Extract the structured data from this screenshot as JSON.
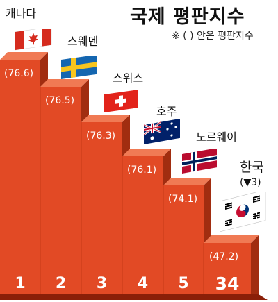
{
  "title": "국제 평판지수",
  "subtitle": "※ ( ) 안은 평판지수",
  "colors": {
    "bar_front": "#e24a25",
    "bar_side": "#a12d10",
    "bar_top": "#f07a54",
    "baseline": "#8a1f08"
  },
  "countries": [
    {
      "name": "캐나다",
      "score": "(76.6)",
      "rank": "1",
      "flag": "canada-flag-icon"
    },
    {
      "name": "스웨덴",
      "score": "(76.5)",
      "rank": "2",
      "flag": "sweden-flag-icon"
    },
    {
      "name": "스위스",
      "score": "(76.3)",
      "rank": "3",
      "flag": "switzerland-flag-icon"
    },
    {
      "name": "호주",
      "score": "(76.1)",
      "rank": "4",
      "flag": "australia-flag-icon"
    },
    {
      "name": "노르웨이",
      "score": "(74.1)",
      "rank": "5",
      "flag": "norway-flag-icon"
    },
    {
      "name": "한국",
      "sub": "(▼3)",
      "score": "(47.2)",
      "rank": "34",
      "flag": "korea-flag-icon"
    }
  ]
}
